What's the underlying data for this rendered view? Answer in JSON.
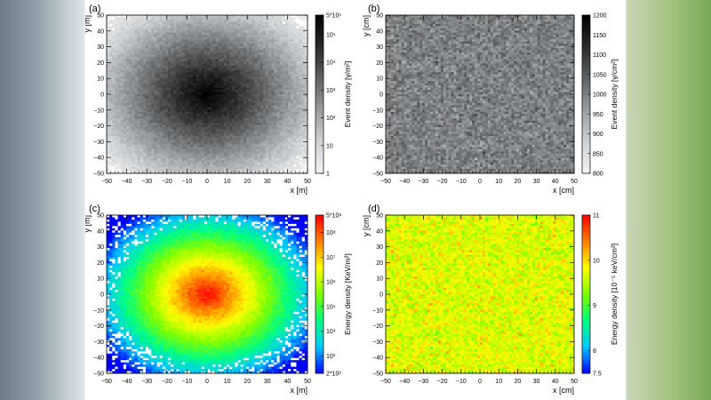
{
  "figure": {
    "panels": [
      {
        "id": "a",
        "label": "(a)",
        "xlabel": "x [m]",
        "ylabel": "y [m]",
        "xticks": [
          "−50",
          "−40",
          "−30",
          "−20",
          "−10",
          "0",
          "10",
          "20",
          "30",
          "40",
          "50"
        ],
        "yticks": [
          "−50",
          "−40",
          "−30",
          "−20",
          "−10",
          "0",
          "10",
          "20",
          "30",
          "40",
          "50"
        ],
        "colorbar": {
          "title": "Event density [γ/m²]",
          "scale": "log",
          "ticks": [
            "1",
            "10",
            "10²",
            "10³",
            "10⁴",
            "10⁵",
            "5*10⁵"
          ],
          "tick_values": [
            1,
            10,
            100,
            1000,
            10000,
            100000,
            500000
          ],
          "colors": [
            "#f2f2f2",
            "#cfd2d4",
            "#9a9d9f",
            "#5f6163",
            "#2a2a2a",
            "#000000"
          ]
        }
      },
      {
        "id": "b",
        "label": "(b)",
        "xlabel": "x [cm]",
        "ylabel": "y [cm]",
        "xticks": [
          "−50",
          "−40",
          "−30",
          "−20",
          "−10",
          "0",
          "10",
          "20",
          "30",
          "40",
          "50"
        ],
        "yticks": [
          "−50",
          "−40",
          "−30",
          "−20",
          "−10",
          "0",
          "10",
          "20",
          "30",
          "40",
          "50"
        ],
        "colorbar": {
          "title": "Event density [γ/cm²]",
          "scale": "linear",
          "ticks": [
            "800",
            "850",
            "900",
            "950",
            "1000",
            "1050",
            "1100",
            "1150",
            "1200"
          ],
          "tick_values": [
            800,
            850,
            900,
            950,
            1000,
            1050,
            1100,
            1150,
            1200
          ],
          "colors": [
            "#f2f2f2",
            "#cfd2d4",
            "#9a9d9f",
            "#5f6163",
            "#2a2a2a",
            "#000000"
          ]
        }
      },
      {
        "id": "c",
        "label": "(c)",
        "xlabel": "x [m]",
        "ylabel": "y [m]",
        "xticks": [
          "−50",
          "−40",
          "−30",
          "−20",
          "−10",
          "0",
          "10",
          "20",
          "30",
          "40",
          "50"
        ],
        "yticks": [
          "−50",
          "−40",
          "−30",
          "−20",
          "−10",
          "0",
          "10",
          "20",
          "30",
          "40",
          "50"
        ],
        "colorbar": {
          "title": "Energy density [KeV/m²]",
          "scale": "log",
          "ticks": [
            "2*10²",
            "10³",
            "10⁴",
            "10⁵",
            "10⁶",
            "10⁷",
            "10⁸",
            "5*10⁸"
          ],
          "tick_values": [
            200,
            1000,
            10000,
            100000,
            1000000,
            10000000,
            100000000,
            500000000
          ],
          "colors": [
            "#0000ff",
            "#00c8ff",
            "#00ff80",
            "#7fff00",
            "#ffff00",
            "#ff8000",
            "#ff0000"
          ]
        }
      },
      {
        "id": "d",
        "label": "(d)",
        "xlabel": "x [cm]",
        "ylabel": "y [cm]",
        "xticks": [
          "−50",
          "−40",
          "−30",
          "−20",
          "−10",
          "0",
          "10",
          "20",
          "30",
          "40",
          "50"
        ],
        "yticks": [
          "−50",
          "−40",
          "−30",
          "−20",
          "−10",
          "0",
          "10",
          "20",
          "30",
          "40",
          "50"
        ],
        "colorbar": {
          "title": "Energy density [10⁻⁵ keV/cm²]",
          "scale": "linear",
          "ticks": [
            "7.5",
            "8",
            "9",
            "10",
            "11"
          ],
          "tick_values": [
            7.5,
            8,
            9,
            10,
            11
          ],
          "colors": [
            "#0000ff",
            "#00c8ff",
            "#00ff80",
            "#7fff00",
            "#ffff00",
            "#ff8000",
            "#ff0000"
          ]
        }
      }
    ]
  },
  "chart_data": [
    {
      "type": "heatmap",
      "panel": "(a)",
      "xlabel": "x [m]",
      "ylabel": "y [m]",
      "xlim": [
        -50,
        50
      ],
      "ylim": [
        -50,
        50
      ],
      "zlabel": "Event density [γ/m²]",
      "zscale": "log",
      "zlim": [
        1,
        500000
      ],
      "grid": false,
      "description_values": {
        "peak_at": [
          0,
          0
        ],
        "peak_value": 500000,
        "edge_value": 1
      }
    },
    {
      "type": "heatmap",
      "panel": "(b)",
      "xlabel": "x [cm]",
      "ylabel": "y [cm]",
      "xlim": [
        -50,
        50
      ],
      "ylim": [
        -50,
        50
      ],
      "zlabel": "Event density [γ/cm²]",
      "zscale": "linear",
      "zlim": [
        800,
        1200
      ],
      "grid": false,
      "description_values": {
        "mean_value": 1000,
        "uniform": true
      }
    },
    {
      "type": "heatmap",
      "panel": "(c)",
      "xlabel": "x [m]",
      "ylabel": "y [m]",
      "xlim": [
        -50,
        50
      ],
      "ylim": [
        -50,
        50
      ],
      "zlabel": "Energy density [KeV/m²]",
      "zscale": "log",
      "zlim": [
        200,
        500000000
      ],
      "grid": false,
      "description_values": {
        "peak_at": [
          0,
          0
        ],
        "peak_value": 500000000,
        "edge_value": 500
      }
    },
    {
      "type": "heatmap",
      "panel": "(d)",
      "xlabel": "x [cm]",
      "ylabel": "y [cm]",
      "xlim": [
        -50,
        50
      ],
      "ylim": [
        -50,
        50
      ],
      "zlabel": "Energy density [10⁻⁵ keV/cm²]",
      "zscale": "linear",
      "zlim": [
        7.5,
        11
      ],
      "grid": false,
      "description_values": {
        "mean_value": 9.6,
        "uniform": true
      }
    }
  ]
}
